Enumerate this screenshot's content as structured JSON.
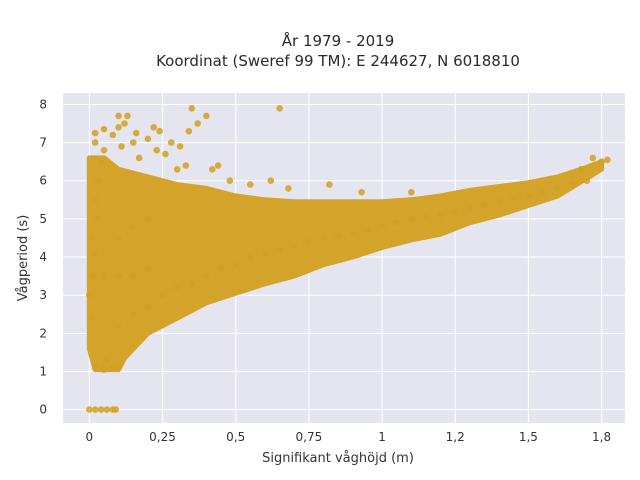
{
  "chart_data": {
    "type": "scatter",
    "title": "År 1979 - 2019",
    "subtitle": "Koordinat (Sweref 99 TM): E 244627, N 6018810",
    "xlabel": "Signifikant våghöjd (m)",
    "ylabel": "Vågperiod (s)",
    "xlim": [
      -0.09,
      1.83
    ],
    "ylim": [
      -0.35,
      8.3
    ],
    "x_ticks": [
      0,
      0.25,
      0.5,
      0.75,
      1,
      1.25,
      1.5,
      1.75
    ],
    "x_tick_labels": [
      "0",
      "0,25",
      "0,5",
      "0,75",
      "1",
      "1,2",
      "1,5",
      "1,8"
    ],
    "y_ticks": [
      0,
      1,
      2,
      3,
      4,
      5,
      6,
      7,
      8
    ],
    "y_tick_labels": [
      "0",
      "1",
      "2",
      "3",
      "4",
      "5",
      "6",
      "7",
      "8"
    ],
    "grid": true,
    "legend": "none",
    "marker_color": "#D4A020",
    "background_color": "#E5E5EF",
    "series": [
      {
        "values": [
          [
            0.0,
            0.0
          ],
          [
            0.02,
            0.0
          ],
          [
            0.04,
            0.0
          ],
          [
            0.06,
            0.0
          ],
          [
            0.08,
            0.0
          ],
          [
            0.09,
            0.0
          ],
          [
            0.02,
            1.1
          ],
          [
            0.05,
            1.05
          ],
          [
            0.08,
            1.1
          ],
          [
            0.1,
            1.1
          ],
          [
            0.06,
            1.3
          ],
          [
            0.01,
            2.4
          ],
          [
            0.0,
            3.0
          ],
          [
            0.01,
            3.5
          ],
          [
            0.02,
            4.1
          ],
          [
            0.01,
            4.5
          ],
          [
            0.03,
            5.0
          ],
          [
            0.02,
            5.5
          ],
          [
            0.03,
            6.0
          ],
          [
            0.04,
            6.5
          ],
          [
            0.05,
            6.8
          ],
          [
            0.02,
            7.0
          ],
          [
            0.02,
            7.25
          ],
          [
            0.05,
            7.35
          ],
          [
            0.08,
            7.2
          ],
          [
            0.1,
            7.4
          ],
          [
            0.12,
            7.5
          ],
          [
            0.1,
            7.7
          ],
          [
            0.13,
            7.7
          ],
          [
            0.11,
            6.9
          ],
          [
            0.15,
            7.0
          ],
          [
            0.16,
            7.25
          ],
          [
            0.17,
            6.6
          ],
          [
            0.2,
            7.1
          ],
          [
            0.22,
            7.4
          ],
          [
            0.24,
            7.3
          ],
          [
            0.23,
            6.8
          ],
          [
            0.26,
            6.7
          ],
          [
            0.28,
            7.0
          ],
          [
            0.3,
            6.3
          ],
          [
            0.31,
            6.9
          ],
          [
            0.33,
            6.4
          ],
          [
            0.35,
            7.9
          ],
          [
            0.34,
            7.3
          ],
          [
            0.37,
            7.5
          ],
          [
            0.4,
            7.7
          ],
          [
            0.42,
            6.3
          ],
          [
            0.44,
            6.4
          ],
          [
            0.48,
            6.0
          ],
          [
            0.55,
            5.9
          ],
          [
            0.62,
            6.0
          ],
          [
            0.65,
            7.9
          ],
          [
            0.68,
            5.8
          ],
          [
            0.82,
            5.9
          ],
          [
            0.93,
            5.7
          ],
          [
            1.1,
            5.7
          ],
          [
            0.05,
            3.5
          ],
          [
            0.1,
            3.5
          ],
          [
            0.15,
            3.5
          ],
          [
            0.2,
            3.7
          ],
          [
            0.1,
            4.5
          ],
          [
            0.15,
            4.8
          ],
          [
            0.2,
            5.0
          ],
          [
            0.1,
            2.2
          ],
          [
            0.15,
            2.5
          ],
          [
            0.2,
            2.7
          ],
          [
            0.25,
            3.0
          ],
          [
            0.3,
            3.2
          ],
          [
            0.35,
            3.3
          ],
          [
            0.4,
            3.5
          ],
          [
            0.45,
            3.7
          ],
          [
            0.5,
            3.8
          ],
          [
            0.55,
            4.0
          ],
          [
            0.6,
            4.1
          ],
          [
            0.65,
            4.2
          ],
          [
            0.7,
            4.3
          ],
          [
            0.75,
            4.4
          ],
          [
            0.8,
            4.5
          ],
          [
            0.85,
            4.55
          ],
          [
            0.9,
            4.6
          ],
          [
            0.95,
            4.7
          ],
          [
            1.0,
            4.8
          ],
          [
            1.05,
            4.9
          ],
          [
            1.1,
            5.0
          ],
          [
            1.15,
            5.05
          ],
          [
            1.2,
            5.1
          ],
          [
            1.25,
            5.2
          ],
          [
            1.3,
            5.3
          ],
          [
            1.35,
            5.35
          ],
          [
            1.4,
            5.45
          ],
          [
            1.45,
            5.55
          ],
          [
            1.5,
            5.6
          ],
          [
            1.55,
            5.7
          ],
          [
            1.6,
            5.8
          ],
          [
            1.65,
            5.9
          ],
          [
            1.7,
            6.0
          ],
          [
            1.75,
            6.5
          ],
          [
            1.77,
            6.55
          ],
          [
            1.72,
            6.6
          ],
          [
            1.68,
            6.3
          ]
        ]
      }
    ]
  }
}
